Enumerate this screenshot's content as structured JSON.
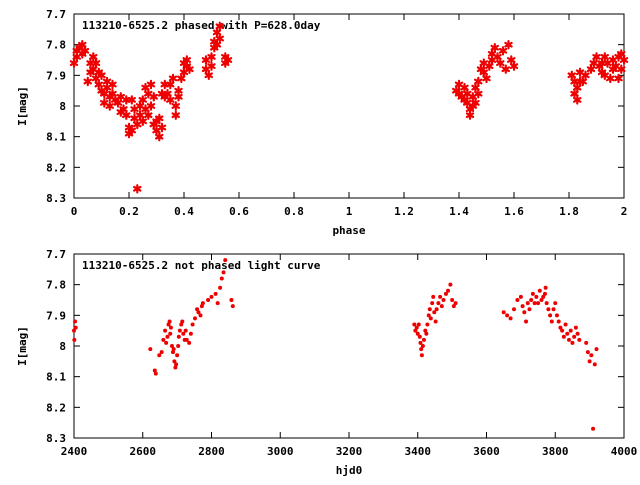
{
  "colors": {
    "points": "#ee0000",
    "frame": "#000000",
    "background": "#ffffff"
  },
  "chart_data": [
    {
      "type": "scatter",
      "title": "113210-6525.2 phased with P=628.0day",
      "xlabel": "phase",
      "ylabel": "I[mag]",
      "xlim": [
        0,
        2
      ],
      "ylim": [
        8.3,
        7.7
      ],
      "y_inverted": true,
      "grid": false,
      "x_ticks": [
        "0",
        "0.2",
        "0.4",
        "0.6",
        "0.8",
        "1",
        "1.2",
        "1.4",
        "1.6",
        "1.8",
        "2"
      ],
      "y_ticks": [
        "7.7",
        "7.8",
        "7.9",
        "8",
        "8.1",
        "8.2",
        "8.3"
      ],
      "marker": "star",
      "points": [
        [
          0.0,
          7.86
        ],
        [
          0.01,
          7.82
        ],
        [
          0.01,
          7.84
        ],
        [
          0.02,
          7.81
        ],
        [
          0.03,
          7.83
        ],
        [
          0.03,
          7.8
        ],
        [
          0.04,
          7.82
        ],
        [
          0.05,
          7.92
        ],
        [
          0.06,
          7.89
        ],
        [
          0.06,
          7.86
        ],
        [
          0.07,
          7.84
        ],
        [
          0.07,
          7.88
        ],
        [
          0.08,
          7.91
        ],
        [
          0.08,
          7.86
        ],
        [
          0.09,
          7.93
        ],
        [
          0.09,
          7.89
        ],
        [
          0.1,
          7.95
        ],
        [
          0.1,
          7.9
        ],
        [
          0.11,
          7.96
        ],
        [
          0.11,
          7.99
        ],
        [
          0.12,
          7.94
        ],
        [
          0.12,
          7.92
        ],
        [
          0.13,
          7.97
        ],
        [
          0.13,
          8.0
        ],
        [
          0.14,
          7.96
        ],
        [
          0.14,
          7.93
        ],
        [
          0.15,
          7.98
        ],
        [
          0.16,
          7.99
        ],
        [
          0.17,
          8.02
        ],
        [
          0.17,
          7.97
        ],
        [
          0.18,
          8.01
        ],
        [
          0.19,
          7.98
        ],
        [
          0.19,
          8.03
        ],
        [
          0.2,
          8.09
        ],
        [
          0.2,
          8.07
        ],
        [
          0.21,
          8.08
        ],
        [
          0.21,
          7.98
        ],
        [
          0.22,
          8.01
        ],
        [
          0.22,
          8.04
        ],
        [
          0.23,
          8.06
        ],
        [
          0.23,
          8.27
        ],
        [
          0.24,
          8.0
        ],
        [
          0.24,
          8.03
        ],
        [
          0.25,
          7.98
        ],
        [
          0.25,
          8.05
        ],
        [
          0.26,
          7.94
        ],
        [
          0.26,
          8.01
        ],
        [
          0.27,
          7.96
        ],
        [
          0.27,
          8.03
        ],
        [
          0.28,
          7.93
        ],
        [
          0.28,
          8.0
        ],
        [
          0.29,
          7.97
        ],
        [
          0.29,
          8.06
        ],
        [
          0.3,
          8.05
        ],
        [
          0.3,
          8.08
        ],
        [
          0.31,
          8.1
        ],
        [
          0.31,
          8.04
        ],
        [
          0.32,
          8.07
        ],
        [
          0.32,
          7.96
        ],
        [
          0.33,
          7.97
        ],
        [
          0.33,
          7.93
        ],
        [
          0.34,
          7.96
        ],
        [
          0.35,
          7.98
        ],
        [
          0.35,
          7.93
        ],
        [
          0.36,
          7.91
        ],
        [
          0.37,
          8.0
        ],
        [
          0.37,
          8.03
        ],
        [
          0.38,
          7.97
        ],
        [
          0.38,
          7.95
        ],
        [
          0.39,
          7.91
        ],
        [
          0.4,
          7.89
        ],
        [
          0.4,
          7.86
        ],
        [
          0.41,
          7.87
        ],
        [
          0.41,
          7.85
        ],
        [
          0.42,
          7.88
        ],
        [
          0.48,
          7.85
        ],
        [
          0.48,
          7.88
        ],
        [
          0.49,
          7.9
        ],
        [
          0.5,
          7.87
        ],
        [
          0.5,
          7.84
        ],
        [
          0.51,
          7.81
        ],
        [
          0.51,
          7.79
        ],
        [
          0.52,
          7.76
        ],
        [
          0.52,
          7.8
        ],
        [
          0.53,
          7.74
        ],
        [
          0.53,
          7.78
        ],
        [
          0.55,
          7.84
        ],
        [
          0.55,
          7.86
        ],
        [
          0.56,
          7.85
        ],
        [
          1.39,
          7.95
        ],
        [
          1.4,
          7.96
        ],
        [
          1.4,
          7.93
        ],
        [
          1.41,
          7.97
        ],
        [
          1.42,
          7.94
        ],
        [
          1.42,
          7.98
        ],
        [
          1.43,
          7.96
        ],
        [
          1.43,
          7.99
        ],
        [
          1.44,
          8.01
        ],
        [
          1.44,
          8.03
        ],
        [
          1.45,
          8.0
        ],
        [
          1.45,
          7.97
        ],
        [
          1.46,
          7.94
        ],
        [
          1.46,
          7.99
        ],
        [
          1.47,
          7.96
        ],
        [
          1.47,
          7.92
        ],
        [
          1.48,
          7.88
        ],
        [
          1.49,
          7.89
        ],
        [
          1.49,
          7.86
        ],
        [
          1.5,
          7.91
        ],
        [
          1.51,
          7.87
        ],
        [
          1.52,
          7.83
        ],
        [
          1.52,
          7.85
        ],
        [
          1.53,
          7.81
        ],
        [
          1.54,
          7.84
        ],
        [
          1.55,
          7.86
        ],
        [
          1.56,
          7.82
        ],
        [
          1.57,
          7.88
        ],
        [
          1.58,
          7.8
        ],
        [
          1.59,
          7.85
        ],
        [
          1.6,
          7.87
        ],
        [
          1.81,
          7.9
        ],
        [
          1.82,
          7.92
        ],
        [
          1.82,
          7.96
        ],
        [
          1.83,
          7.94
        ],
        [
          1.83,
          7.98
        ],
        [
          1.84,
          7.92
        ],
        [
          1.84,
          7.89
        ],
        [
          1.85,
          7.92
        ],
        [
          1.86,
          7.9
        ],
        [
          1.88,
          7.88
        ],
        [
          1.89,
          7.86
        ],
        [
          1.9,
          7.84
        ],
        [
          1.91,
          7.87
        ],
        [
          1.92,
          7.89
        ],
        [
          1.92,
          7.86
        ],
        [
          1.93,
          7.84
        ],
        [
          1.93,
          7.9
        ],
        [
          1.94,
          7.86
        ],
        [
          1.95,
          7.91
        ],
        [
          1.96,
          7.88
        ],
        [
          1.96,
          7.85
        ],
        [
          1.97,
          7.87
        ],
        [
          1.98,
          7.91
        ],
        [
          1.98,
          7.84
        ],
        [
          1.99,
          7.88
        ],
        [
          1.99,
          7.83
        ],
        [
          2.0,
          7.85
        ]
      ]
    },
    {
      "type": "scatter",
      "title": "113210-6525.2 not phased light curve",
      "xlabel": "hjd0",
      "ylabel": "I[mag]",
      "xlim": [
        2400,
        4000
      ],
      "ylim": [
        8.3,
        7.7
      ],
      "y_inverted": true,
      "grid": false,
      "x_ticks": [
        "2400",
        "2600",
        "2800",
        "3000",
        "3200",
        "3400",
        "3600",
        "3800",
        "4000"
      ],
      "y_ticks": [
        "7.7",
        "7.8",
        "7.9",
        "8",
        "8.1",
        "8.2",
        "8.3"
      ],
      "marker": "dot",
      "points": [
        [
          2400,
          7.95
        ],
        [
          2401,
          7.98
        ],
        [
          2403,
          7.92
        ],
        [
          2405,
          7.94
        ],
        [
          2622,
          8.01
        ],
        [
          2635,
          8.08
        ],
        [
          2638,
          8.09
        ],
        [
          2648,
          8.03
        ],
        [
          2655,
          8.02
        ],
        [
          2660,
          7.98
        ],
        [
          2665,
          7.95
        ],
        [
          2668,
          7.99
        ],
        [
          2672,
          7.97
        ],
        [
          2675,
          7.93
        ],
        [
          2678,
          7.92
        ],
        [
          2680,
          7.96
        ],
        [
          2682,
          7.94
        ],
        [
          2685,
          8.0
        ],
        [
          2688,
          8.02
        ],
        [
          2690,
          8.01
        ],
        [
          2692,
          8.05
        ],
        [
          2695,
          8.07
        ],
        [
          2697,
          8.06
        ],
        [
          2700,
          8.03
        ],
        [
          2703,
          8.0
        ],
        [
          2705,
          7.97
        ],
        [
          2708,
          7.95
        ],
        [
          2712,
          7.93
        ],
        [
          2715,
          7.92
        ],
        [
          2718,
          7.96
        ],
        [
          2722,
          7.98
        ],
        [
          2725,
          7.95
        ],
        [
          2728,
          7.98
        ],
        [
          2735,
          7.99
        ],
        [
          2740,
          7.96
        ],
        [
          2745,
          7.93
        ],
        [
          2752,
          7.91
        ],
        [
          2758,
          7.88
        ],
        [
          2762,
          7.89
        ],
        [
          2768,
          7.9
        ],
        [
          2772,
          7.87
        ],
        [
          2775,
          7.86
        ],
        [
          2790,
          7.85
        ],
        [
          2800,
          7.84
        ],
        [
          2812,
          7.83
        ],
        [
          2818,
          7.86
        ],
        [
          2825,
          7.81
        ],
        [
          2830,
          7.78
        ],
        [
          2835,
          7.76
        ],
        [
          2840,
          7.72
        ],
        [
          2858,
          7.85
        ],
        [
          2862,
          7.87
        ],
        [
          3390,
          7.93
        ],
        [
          3393,
          7.95
        ],
        [
          3397,
          7.94
        ],
        [
          3400,
          7.96
        ],
        [
          3403,
          7.93
        ],
        [
          3406,
          7.97
        ],
        [
          3408,
          7.99
        ],
        [
          3410,
          8.01
        ],
        [
          3412,
          8.03
        ],
        [
          3415,
          8.0
        ],
        [
          3418,
          7.98
        ],
        [
          3422,
          7.95
        ],
        [
          3425,
          7.96
        ],
        [
          3428,
          7.93
        ],
        [
          3432,
          7.9
        ],
        [
          3435,
          7.88
        ],
        [
          3438,
          7.91
        ],
        [
          3442,
          7.86
        ],
        [
          3445,
          7.84
        ],
        [
          3448,
          7.89
        ],
        [
          3452,
          7.92
        ],
        [
          3455,
          7.88
        ],
        [
          3460,
          7.86
        ],
        [
          3465,
          7.84
        ],
        [
          3470,
          7.87
        ],
        [
          3475,
          7.85
        ],
        [
          3482,
          7.83
        ],
        [
          3488,
          7.82
        ],
        [
          3495,
          7.8
        ],
        [
          3500,
          7.85
        ],
        [
          3505,
          7.87
        ],
        [
          3510,
          7.86
        ],
        [
          3650,
          7.89
        ],
        [
          3660,
          7.9
        ],
        [
          3670,
          7.91
        ],
        [
          3680,
          7.88
        ],
        [
          3690,
          7.85
        ],
        [
          3700,
          7.84
        ],
        [
          3705,
          7.87
        ],
        [
          3710,
          7.89
        ],
        [
          3715,
          7.92
        ],
        [
          3720,
          7.86
        ],
        [
          3725,
          7.88
        ],
        [
          3730,
          7.85
        ],
        [
          3735,
          7.83
        ],
        [
          3740,
          7.86
        ],
        [
          3745,
          7.84
        ],
        [
          3750,
          7.86
        ],
        [
          3755,
          7.82
        ],
        [
          3760,
          7.85
        ],
        [
          3765,
          7.84
        ],
        [
          3770,
          7.83
        ],
        [
          3772,
          7.81
        ],
        [
          3775,
          7.86
        ],
        [
          3780,
          7.88
        ],
        [
          3785,
          7.9
        ],
        [
          3790,
          7.92
        ],
        [
          3795,
          7.88
        ],
        [
          3800,
          7.86
        ],
        [
          3805,
          7.9
        ],
        [
          3810,
          7.92
        ],
        [
          3815,
          7.94
        ],
        [
          3820,
          7.95
        ],
        [
          3825,
          7.97
        ],
        [
          3830,
          7.93
        ],
        [
          3835,
          7.96
        ],
        [
          3840,
          7.98
        ],
        [
          3845,
          7.95
        ],
        [
          3850,
          7.99
        ],
        [
          3855,
          7.97
        ],
        [
          3860,
          7.94
        ],
        [
          3865,
          7.96
        ],
        [
          3870,
          7.98
        ],
        [
          3890,
          7.99
        ],
        [
          3895,
          8.02
        ],
        [
          3900,
          8.05
        ],
        [
          3905,
          8.03
        ],
        [
          3910,
          8.27
        ],
        [
          3915,
          8.06
        ],
        [
          3920,
          8.01
        ]
      ]
    }
  ]
}
